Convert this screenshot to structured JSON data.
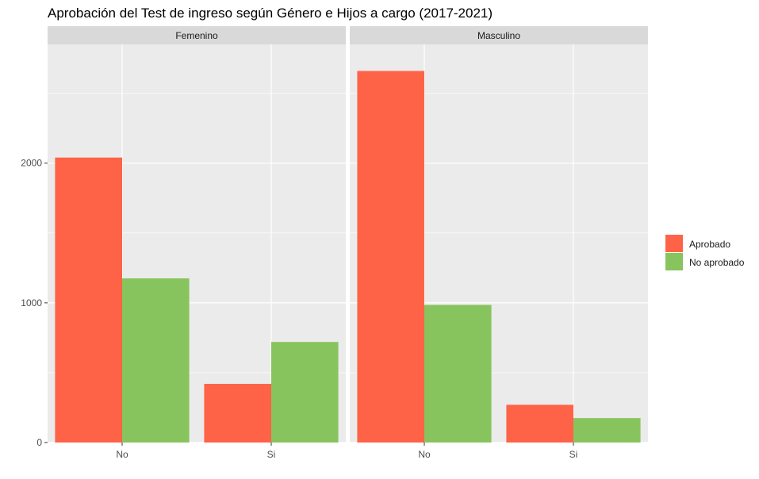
{
  "chart_data": {
    "type": "bar",
    "title": "Aprobación del Test de ingreso según Género e Hijos a cargo (2017-2021)",
    "xlabel": "",
    "ylabel": "",
    "ylim": [
      0,
      2850
    ],
    "yticks": [
      0,
      1000,
      2000
    ],
    "ytick_labels": [
      "0",
      "1000",
      "2000"
    ],
    "grid": true,
    "legend_position": "right",
    "categories": [
      "No",
      "Si"
    ],
    "series_names": [
      "Aprobado",
      "No aprobado"
    ],
    "colors": {
      "Aprobado": "#FF6347",
      "No aprobado": "#88C45D"
    },
    "facets": [
      {
        "label": "Femenino",
        "series": [
          {
            "name": "Aprobado",
            "values": [
              2040,
              420
            ]
          },
          {
            "name": "No aprobado",
            "values": [
              1175,
              720
            ]
          }
        ]
      },
      {
        "label": "Masculino",
        "series": [
          {
            "name": "Aprobado",
            "values": [
              2660,
              270
            ]
          },
          {
            "name": "No aprobado",
            "values": [
              985,
              175
            ]
          }
        ]
      }
    ]
  }
}
